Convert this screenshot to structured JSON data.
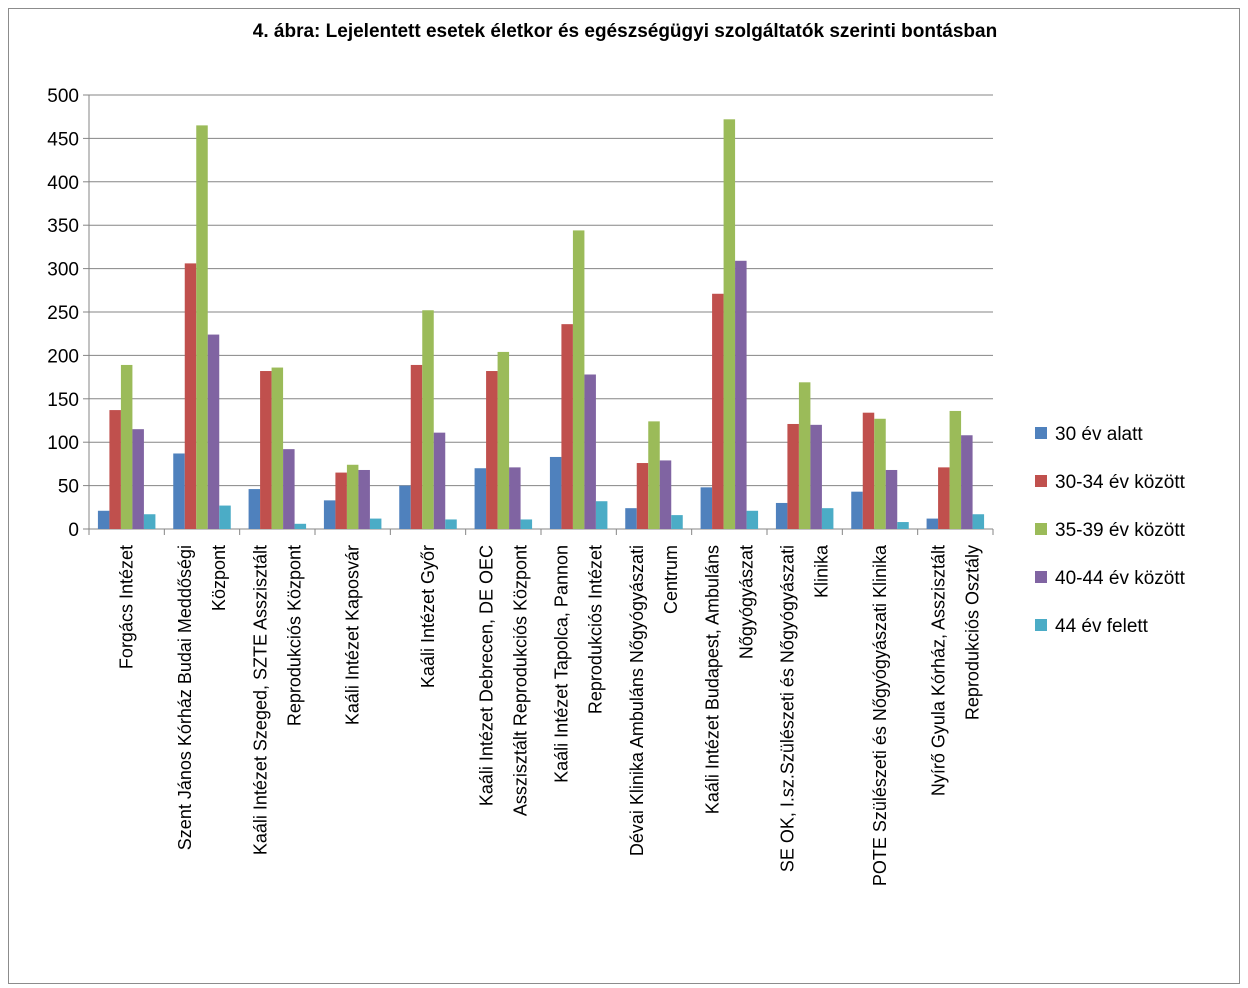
{
  "chart_data": {
    "type": "bar",
    "title": "4. ábra: Lejelentett esetek életkor és egészségügyi szolgáltatók szerinti bontásban",
    "ylim": [
      0,
      500
    ],
    "yticks": [
      0,
      50,
      100,
      150,
      200,
      250,
      300,
      350,
      400,
      450,
      500
    ],
    "grid": true,
    "legend_position": "right",
    "categories": [
      [
        "Forgács Intézet"
      ],
      [
        "Szent János Kórház Budai Meddőségi",
        "Központ"
      ],
      [
        "Kaáli Intézet  Szeged, SZTE Asszisztált",
        "Reprodukciós Központ"
      ],
      [
        "Kaáli Intézet  Kaposvár"
      ],
      [
        "Kaáli Intézet  Győr"
      ],
      [
        "Kaáli Intézet  Debrecen,  DE OEC",
        "Asszisztált Reprodukciós Központ"
      ],
      [
        "Kaáli Intézet Tapolca, Pannon",
        "Reprodukciós Intézet"
      ],
      [
        "Dévai Klinika Ambuláns Nőgyógyászati",
        "Centrum"
      ],
      [
        "Kaáli Intézet Budapest,  Ambuláns",
        "Nőgyógyászat"
      ],
      [
        "SE OK, I.sz.Szülészeti  és Nőgyógyászati",
        "Klinika"
      ],
      [
        "POTE Szülészeti és Nőgyógyászati Klinika"
      ],
      [
        "Nyírő Gyula Kórház,  Asszisztált",
        "Reprodukciós Osztály"
      ]
    ],
    "series": [
      {
        "name": "30 év alatt",
        "color": "#4f81bd",
        "values": [
          21,
          87,
          46,
          33,
          50,
          70,
          83,
          24,
          48,
          30,
          43,
          12
        ]
      },
      {
        "name": "30-34 év között",
        "color": "#c0504d",
        "values": [
          137,
          306,
          182,
          65,
          189,
          182,
          236,
          76,
          271,
          121,
          134,
          71
        ]
      },
      {
        "name": "35-39 év között",
        "color": "#9bbb59",
        "values": [
          189,
          465,
          186,
          74,
          252,
          204,
          344,
          124,
          472,
          169,
          127,
          136
        ]
      },
      {
        "name": "40-44 év között",
        "color": "#8064a2",
        "values": [
          115,
          224,
          92,
          68,
          111,
          71,
          178,
          79,
          309,
          120,
          68,
          108
        ]
      },
      {
        "name": "44 év felett",
        "color": "#4bacc6",
        "values": [
          17,
          27,
          6,
          12,
          11,
          11,
          32,
          16,
          21,
          24,
          8,
          17
        ]
      }
    ]
  }
}
